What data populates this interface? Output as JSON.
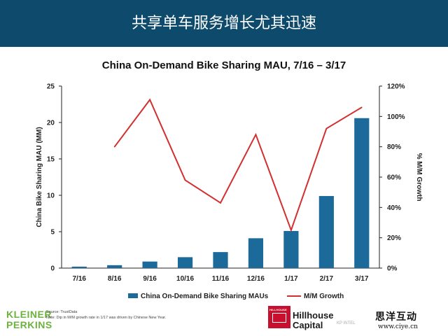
{
  "header": {
    "title": "共享单车服务增长尤其迅速"
  },
  "chart_data": {
    "type": "bar+line",
    "title": "China On-Demand Bike Sharing MAU, 7/16 – 3/17",
    "categories": [
      "7/16",
      "8/16",
      "9/16",
      "10/16",
      "11/16",
      "12/16",
      "1/17",
      "2/17",
      "3/17"
    ],
    "series": [
      {
        "name": "China On-Demand Bike Sharing MAUs",
        "type": "bar",
        "axis": "left",
        "values": [
          0.2,
          0.4,
          0.9,
          1.5,
          2.2,
          4.1,
          5.1,
          9.9,
          20.6
        ]
      },
      {
        "name": "M/M Growth",
        "type": "line",
        "axis": "right",
        "values": [
          null,
          80,
          111,
          58,
          43,
          88,
          25,
          92,
          106
        ]
      }
    ],
    "ylabel": "China Bike Sharing MAU (MM)",
    "ylim": [
      0,
      25
    ],
    "yticks": [
      0,
      5,
      10,
      15,
      20,
      25
    ],
    "y2label": "% M/M Growth",
    "y2lim": [
      0,
      120
    ],
    "y2ticks": [
      "0%",
      "20%",
      "40%",
      "60%",
      "80%",
      "100%",
      "120%"
    ],
    "grid": false,
    "legend_position": "bottom",
    "colors": {
      "bar": "#1b6a9a",
      "line": "#d32f2f"
    }
  },
  "footer": {
    "source": "Source: TrustData",
    "note": "Note: Dip in M/M growth rate in 1/17 was driven by Chinese New Year.",
    "kleiner_line1": "KLEINER",
    "kleiner_line2": "PERKINS",
    "hillhouse_small": "HILLHOUSE",
    "hillhouse_line1": "Hillhouse",
    "hillhouse_line2": "Capital",
    "kpintel": "KP INTEL",
    "watermark_cn": "思洋互动",
    "watermark_url": "www.ciye.cn"
  }
}
